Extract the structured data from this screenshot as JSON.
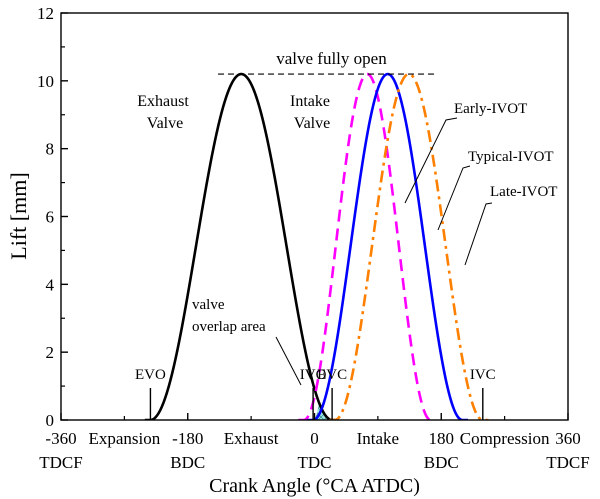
{
  "chart_data": {
    "type": "line",
    "title": "",
    "xlabel": "Crank Angle (°CA ATDC)",
    "ylabel": "Lift [mm]",
    "xlim": [
      -360,
      360
    ],
    "ylim": [
      0,
      12
    ],
    "x_ticks": [
      -360,
      -180,
      0,
      180,
      360
    ],
    "y_ticks": [
      0,
      2,
      4,
      6,
      8,
      10,
      12
    ],
    "x_tick_labels": [
      "-360",
      "-180",
      "0",
      "180",
      "360"
    ],
    "y_tick_labels": [
      "0",
      "2",
      "4",
      "6",
      "8",
      "10",
      "12"
    ],
    "minor_step_x": 90,
    "minor_step_y": 1,
    "stroke_labels": [
      {
        "text": "Expansion",
        "x": -270
      },
      {
        "text": "Exhaust",
        "x": -90
      },
      {
        "text": "Intake",
        "x": 90
      },
      {
        "text": "Compression",
        "x": 270
      }
    ],
    "dead_center_labels": [
      {
        "text": "TDCF",
        "x": -360
      },
      {
        "text": "BDC",
        "x": -180
      },
      {
        "text": "TDC",
        "x": 0
      },
      {
        "text": "BDC",
        "x": 180
      },
      {
        "text": "TDCF",
        "x": 360
      }
    ],
    "series": [
      {
        "name": "Exhaust Valve",
        "color": "#000000",
        "dash": "solid",
        "open": -233,
        "close": 25,
        "max_lift": 10.2,
        "peak": -104
      },
      {
        "name": "Early-IVOT",
        "color": "#ff00ff",
        "dash": "dashed",
        "open": -15,
        "close": 165,
        "max_lift": 10.2,
        "peak": 75
      },
      {
        "name": "Typical-IVOT",
        "color": "#0000ff",
        "dash": "solid",
        "open": -2,
        "close": 210,
        "max_lift": 10.2,
        "peak": 104
      },
      {
        "name": "Late-IVOT",
        "color": "#ff8000",
        "dash": "dash-dot",
        "open": 29,
        "close": 239,
        "max_lift": 10.2,
        "peak": 134
      }
    ],
    "events": [
      {
        "label": "EVO",
        "x": -233
      },
      {
        "label": "IVO",
        "x": -2
      },
      {
        "label": "EVC",
        "x": 25
      },
      {
        "label": "IVC",
        "x": 239
      }
    ],
    "reference_line": {
      "label": "valve fully open",
      "y": 10.2,
      "x_from": -137,
      "x_to": 171
    },
    "annotations": {
      "exhaust_valve": [
        "Exhaust",
        "Valve"
      ],
      "intake_valve": [
        "Intake",
        "Valve"
      ],
      "overlap": [
        "valve",
        "overlap area"
      ],
      "early": "Early-IVOT",
      "typical": "Typical-IVOT",
      "late": "Late-IVOT"
    },
    "overlap_fill": "#9ee6e6"
  }
}
